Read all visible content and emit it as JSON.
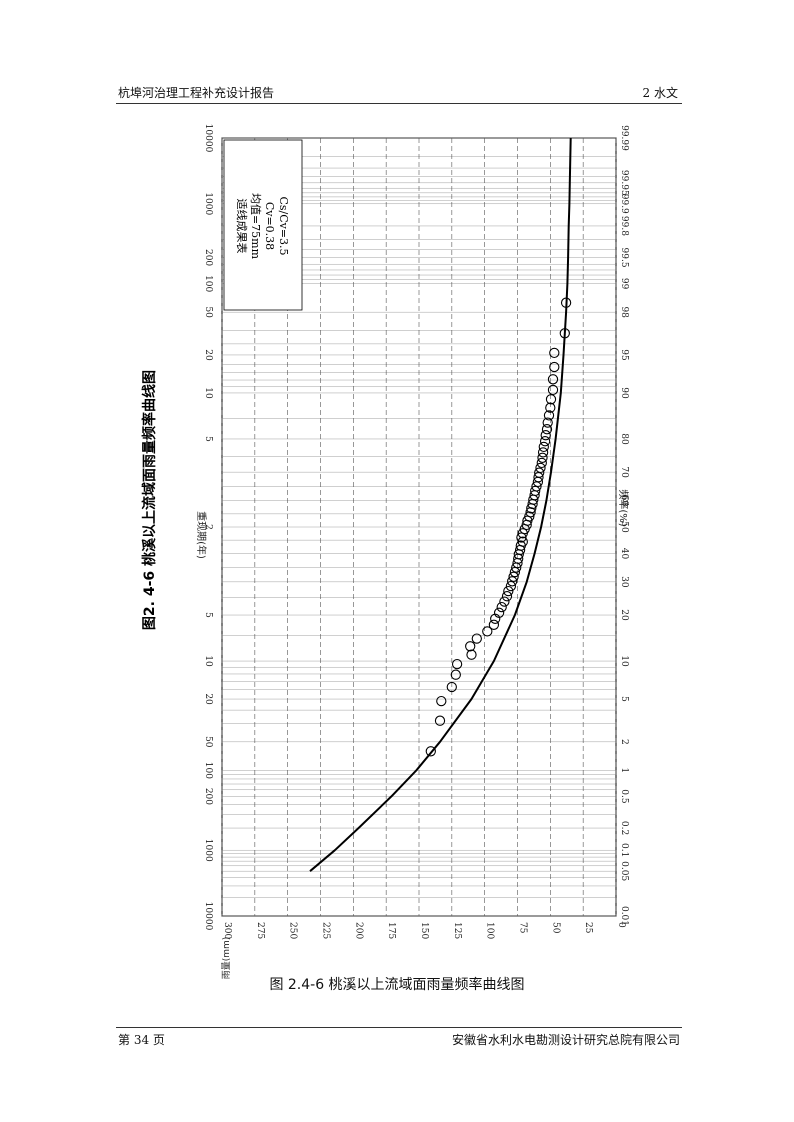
{
  "header": {
    "left": "杭埠河治理工程补充设计报告",
    "right": "2   水文"
  },
  "footer": {
    "left": "第 34 页",
    "right": "安徽省水利水电勘测设计研究总院有限公司"
  },
  "caption": "图 2.4-6    桃溪以上流域面雨量频率曲线图",
  "chart_data": {
    "type": "scatter",
    "title": "图2. 4-6   桃溪以上流域面雨量频率曲线图",
    "xlabel": "频率(%)",
    "x2label": "重现期(年)",
    "ylabel": "雨量(mm)",
    "x_scale": "normal-probability",
    "ylim": [
      0,
      300
    ],
    "y_ticks": [
      "0",
      "25",
      "50",
      "75",
      "100",
      "125",
      "150",
      "175",
      "200",
      "225",
      "250",
      "275",
      "300"
    ],
    "freq_ticks": [
      "0.01",
      "0.05",
      "0.1",
      "0.2",
      "0.5",
      "1",
      "2",
      "5",
      "10",
      "20",
      "30",
      "40",
      "50",
      "60",
      "70",
      "80",
      "90",
      "95",
      "98",
      "99",
      "99.5",
      "99.8",
      "99.9",
      "99.95",
      "99.99"
    ],
    "return_period_ticks": [
      "10000",
      "1000",
      "200",
      "100",
      "50",
      "20",
      "10",
      "5",
      "2",
      "5",
      "10",
      "20",
      "50",
      "100",
      "200",
      "1000",
      "10000"
    ],
    "legend": {
      "lines": [
        "适线成果表",
        "均值=75mm",
        "Cv=0.38",
        "Cs/Cv=3.5"
      ],
      "placement": "top-left"
    },
    "curve": {
      "freq": [
        0.05,
        0.1,
        0.2,
        0.5,
        1,
        2,
        5,
        10,
        20,
        30,
        40,
        50,
        60,
        70,
        80,
        90,
        95,
        98,
        99,
        99.5,
        99.8,
        99.9,
        99.95,
        99.99
      ],
      "value": [
        233,
        214,
        196,
        171,
        152,
        134,
        110,
        93,
        77,
        68,
        62,
        57,
        53,
        49.5,
        46,
        42,
        40,
        38,
        37,
        36.5,
        36,
        35.5,
        35.2,
        34.5
      ]
    },
    "points": {
      "freq": [
        1.6,
        3.2,
        4.8,
        6.3,
        7.9,
        9.5,
        11.1,
        12.7,
        14.3,
        15.9,
        17.5,
        19.0,
        20.6,
        22.2,
        23.8,
        25.4,
        27.0,
        28.6,
        30.2,
        31.7,
        33.3,
        34.9,
        36.5,
        38.1,
        39.7,
        41.3,
        42.9,
        44.4,
        46.0,
        47.6,
        49.2,
        50.8,
        52.4,
        54.0,
        55.6,
        57.1,
        58.7,
        60.3,
        61.9,
        63.5,
        65.1,
        66.7,
        68.3,
        69.8,
        71.4,
        73.0,
        74.6,
        76.2,
        77.8,
        79.4,
        81.0,
        82.5,
        84.1,
        85.7,
        87.3,
        88.9,
        90.5,
        92.1,
        93.7,
        95.2,
        96.8,
        98.4
      ],
      "value": [
        141,
        134,
        133,
        125,
        122,
        121,
        110,
        111,
        106,
        98,
        93,
        92,
        89,
        87,
        85,
        83,
        82,
        80,
        79,
        78,
        77,
        76,
        75,
        74.5,
        74,
        73,
        72.5,
        71,
        72,
        71,
        69.5,
        68,
        67.5,
        66,
        65,
        64.5,
        63.5,
        63,
        62,
        61.5,
        60.5,
        59.5,
        59,
        58.5,
        57.5,
        56.5,
        56,
        55.5,
        55,
        54,
        53.5,
        52.5,
        52,
        51,
        50,
        49.5,
        48,
        48,
        47,
        47,
        39,
        38
      ]
    }
  }
}
